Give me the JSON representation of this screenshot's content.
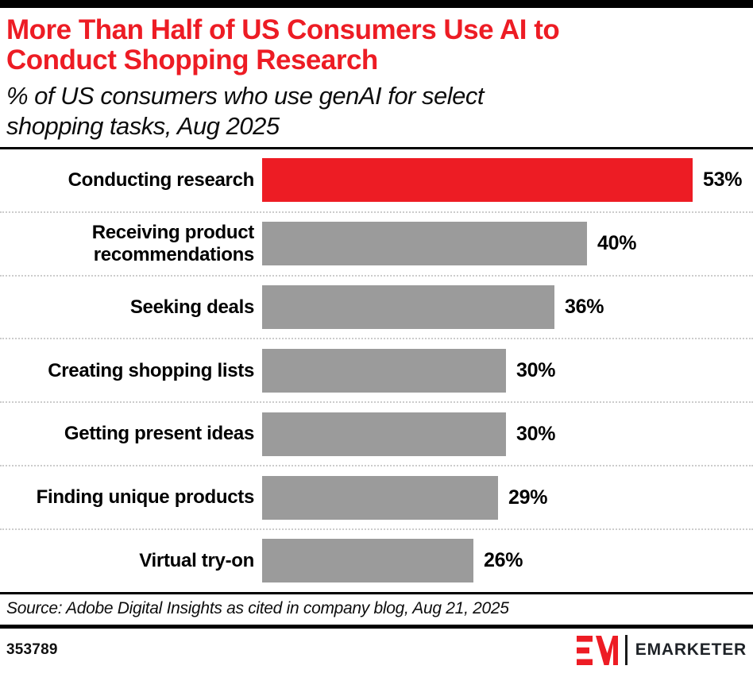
{
  "header": {
    "title": "More Than Half of US Consumers Use AI to Conduct Shopping Research",
    "title_lines": [
      "More Than Half of US Consumers Use AI to",
      "Conduct Shopping Research"
    ],
    "subtitle": "% of US consumers who use genAI for select shopping tasks, Aug 2025",
    "subtitle_lines": [
      "% of US consumers who use genAI for select",
      "shopping tasks, Aug 2025"
    ]
  },
  "chart_data": {
    "type": "bar",
    "orientation": "horizontal",
    "title": "More Than Half of US Consumers Use AI to Conduct Shopping Research",
    "subtitle": "% of US consumers who use genAI for select shopping tasks, Aug 2025",
    "categories": [
      "Conducting research",
      "Receiving product recommendations",
      "Seeking deals",
      "Creating shopping lists",
      "Getting present ideas",
      "Finding unique products",
      "Virtual try-on"
    ],
    "values": [
      53,
      40,
      36,
      30,
      30,
      29,
      26
    ],
    "value_labels": [
      "53%",
      "40%",
      "36%",
      "30%",
      "30%",
      "29%",
      "26%"
    ],
    "unit": "%",
    "xlabel": "",
    "ylabel": "",
    "xlim": [
      0,
      56
    ],
    "grid": false,
    "legend": false,
    "highlight_color": "#ED1C24",
    "default_color": "#9B9B9B",
    "highlight_index": 0
  },
  "footer": {
    "source": "Source: Adobe Digital Insights as cited in company blog, Aug 21, 2025",
    "chart_id": "353789",
    "brand": "EMARKETER"
  },
  "colors": {
    "accent_red": "#ED1C24",
    "bar_gray": "#9B9B9B",
    "separator_gray": "#cccccc",
    "line_black": "#000000"
  }
}
